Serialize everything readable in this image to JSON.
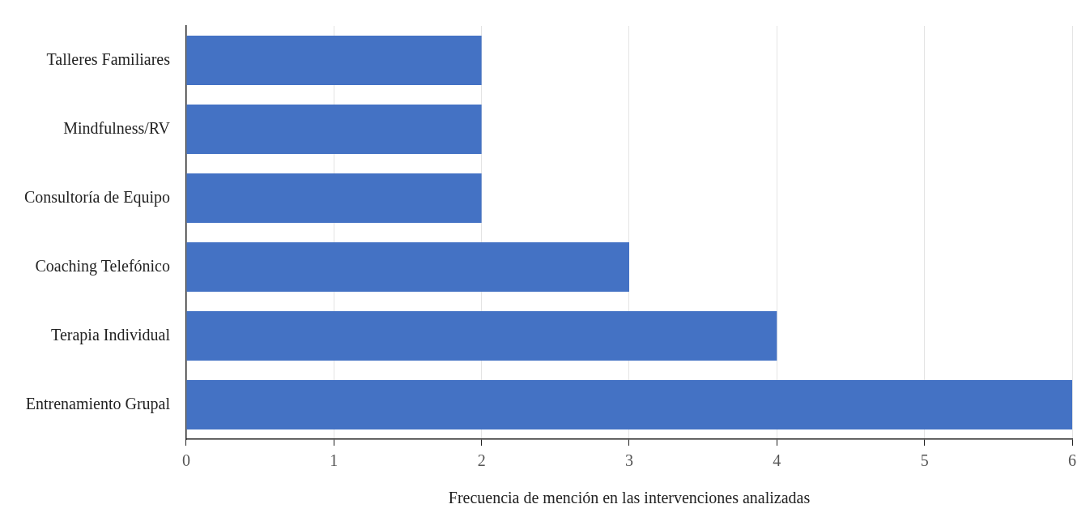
{
  "chart_data": {
    "type": "bar",
    "orientation": "horizontal",
    "categories": [
      "Talleres Familiares",
      "Mindfulness/RV",
      "Consultoría de Equipo",
      "Coaching Telefónico",
      "Terapia Individual",
      "Entrenamiento Grupal"
    ],
    "values": [
      2,
      2,
      2,
      3,
      4,
      6
    ],
    "color": "#4472c4",
    "xlim": [
      0,
      6
    ],
    "xticks": [
      0,
      1,
      2,
      3,
      4,
      5,
      6
    ],
    "xlabel": "Frecuencia de mención en las intervenciones analizadas",
    "grid": "x",
    "legend": false
  }
}
